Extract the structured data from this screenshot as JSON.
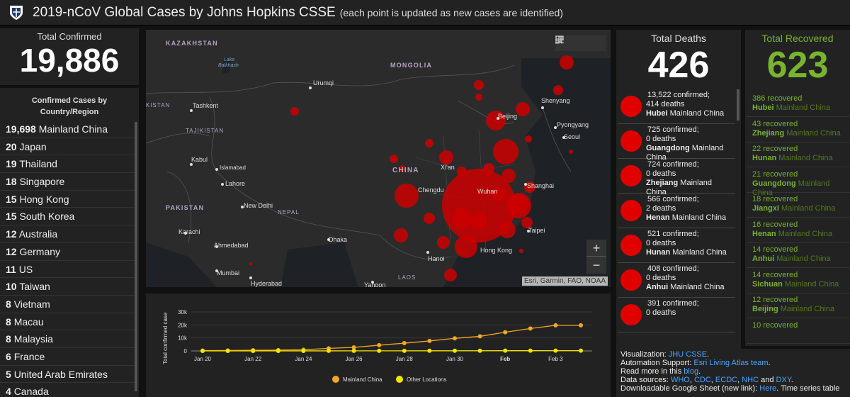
{
  "header": {
    "title": "2019-nCoV Global Cases by Johns Hopkins CSSE",
    "subtitle": "(each point is updated as new cases are identified)"
  },
  "total_confirmed": {
    "label": "Total Confirmed",
    "value": "19,886"
  },
  "country_list": {
    "heading_line1": "Confirmed Cases by",
    "heading_line2": "Country/Region",
    "items": [
      {
        "count": "19,698",
        "name": "Mainland China"
      },
      {
        "count": "20",
        "name": "Japan"
      },
      {
        "count": "19",
        "name": "Thailand"
      },
      {
        "count": "18",
        "name": "Singapore"
      },
      {
        "count": "15",
        "name": "Hong Kong"
      },
      {
        "count": "15",
        "name": "South Korea"
      },
      {
        "count": "12",
        "name": "Australia"
      },
      {
        "count": "12",
        "name": "Germany"
      },
      {
        "count": "11",
        "name": "US"
      },
      {
        "count": "10",
        "name": "Taiwan"
      },
      {
        "count": "8",
        "name": "Vietnam"
      },
      {
        "count": "8",
        "name": "Macau"
      },
      {
        "count": "8",
        "name": "Malaysia"
      },
      {
        "count": "6",
        "name": "France"
      },
      {
        "count": "5",
        "name": "United Arab Emirates"
      },
      {
        "count": "4",
        "name": "Canada"
      }
    ]
  },
  "map": {
    "labels": {
      "kazakhstan": "KAZAKHSTAN",
      "mongolia": "MONGOLIA",
      "china": "CHINA",
      "pakistan": "PAKISTAN",
      "nepal": "NEPAL",
      "laos": "LAOS",
      "tajikistan": "TAJIKISTAN",
      "kistan": "KISTAN",
      "lake": "Lake",
      "balkhash": "Balkhash",
      "urumqi": "Urumqi",
      "tashkent": "Tashkent",
      "kabul": "Kabul",
      "islamabad": "Islamabad",
      "lahore": "Lahore",
      "new_delhi": "New Delhi",
      "karachi": "Karachi",
      "ahmedabad": "Ahmedabad",
      "mumbai": "Mumbai",
      "hyderabad": "Hyderabad",
      "dhaka": "Dhaka",
      "chengdu": "Chengdu",
      "xian": "Xi'an",
      "wuhan": "Wuhan",
      "beijing": "Beijing",
      "shenyang": "Shenyang",
      "pyongyang": "Pyongyang",
      "seoul": "Seoul",
      "shanghai": "Shanghai",
      "taipei": "Taipei",
      "hong_kong": "Hong Kong",
      "hanoi": "Hanoi",
      "yangon": "Yangon"
    },
    "zoom_in": "+",
    "zoom_out": "−",
    "attribution": "Esri, Garmin, FAO, NOAA",
    "bookmark_icon": "bookmark-icon",
    "list_icon": "list-icon",
    "qr_icon": "qr-icon"
  },
  "chart_data": {
    "type": "line",
    "ylabel": "Total confirmed case",
    "ylim": [
      0,
      30000
    ],
    "yticks": [
      "0",
      "10k",
      "20k",
      "30k"
    ],
    "xtick_labels": [
      "Jan 20",
      "Jan 22",
      "Jan 24",
      "Jan 26",
      "Jan 28",
      "Jan 30",
      "Feb",
      "Feb 3"
    ],
    "x": [
      "Jan 20",
      "Jan 21",
      "Jan 22",
      "Jan 23",
      "Jan 24",
      "Jan 25",
      "Jan 26",
      "Jan 27",
      "Jan 28",
      "Jan 29",
      "Jan 30",
      "Jan 31",
      "Feb 1",
      "Feb 2",
      "Feb 3",
      "Feb 4"
    ],
    "series": [
      {
        "name": "Mainland China",
        "color": "#f5a623",
        "values": [
          278,
          326,
          547,
          639,
          916,
          1979,
          2737,
          4409,
          5970,
          7678,
          9658,
          11221,
          14375,
          17238,
          19698,
          19698
        ]
      },
      {
        "name": "Other Locations",
        "color": "#f5e400",
        "values": [
          4,
          6,
          8,
          14,
          25,
          40,
          57,
          64,
          87,
          105,
          118,
          153,
          173,
          183,
          188,
          188
        ]
      }
    ]
  },
  "total_deaths": {
    "label": "Total Deaths",
    "value": "426",
    "items": [
      {
        "confirmed": "13,522 confirmed;",
        "deaths": "414 deaths",
        "region": "Hubei",
        "country": "Mainland China"
      },
      {
        "confirmed": "725 confirmed;",
        "deaths": "0 deaths",
        "region": "Guangdong",
        "country": "Mainland China"
      },
      {
        "confirmed": "724 confirmed;",
        "deaths": "0 deaths",
        "region": "Zhejiang",
        "country": "Mainland China"
      },
      {
        "confirmed": "566 confirmed;",
        "deaths": "2 deaths",
        "region": "Henan",
        "country": "Mainland China"
      },
      {
        "confirmed": "521 confirmed;",
        "deaths": "0 deaths",
        "region": "Hunan",
        "country": "Mainland China"
      },
      {
        "confirmed": "408 confirmed;",
        "deaths": "0 deaths",
        "region": "Anhui",
        "country": "Mainland China"
      },
      {
        "confirmed": "391 confirmed;",
        "deaths": "0 deaths",
        "region": "",
        "country": ""
      }
    ]
  },
  "total_recovered": {
    "label": "Total Recovered",
    "value": "623",
    "items": [
      {
        "count": "386 recovered",
        "region": "Hubei",
        "country": "Mainland China"
      },
      {
        "count": "43 recovered",
        "region": "Zhejiang",
        "country": "Mainland China"
      },
      {
        "count": "22 recovered",
        "region": "Hunan",
        "country": "Mainland China"
      },
      {
        "count": "21 recovered",
        "region": "Guangdong",
        "country": "Mainland China"
      },
      {
        "count": "18 recovered",
        "region": "Jiangxi",
        "country": "Mainland China"
      },
      {
        "count": "16 recovered",
        "region": "Henan",
        "country": "Mainland China"
      },
      {
        "count": "14 recovered",
        "region": "Anhui",
        "country": "Mainland China"
      },
      {
        "count": "14 recovered",
        "region": "Sichuan",
        "country": "Mainland China"
      },
      {
        "count": "12 recovered",
        "region": "Beijing",
        "country": "Mainland China"
      },
      {
        "count": "10 recovered",
        "region": "",
        "country": ""
      }
    ]
  },
  "info": {
    "viz_label": "Visualization:",
    "viz_link": "JHU CSSE",
    "support_label": "Automation Support:",
    "support_link": "Esri Living Atlas team",
    "read_more": "Read more in this",
    "blog_link": "blog",
    "sources_label": "Data sources:",
    "src_who": "WHO",
    "src_cdc": "CDC",
    "src_ecdc": "ECDC",
    "src_nhc": "NHC",
    "and_text": "and",
    "src_dxy": "DXY",
    "download_label": "Downloadable Google Sheet (new link):",
    "here_link": "Here",
    "timeseries_text": "Time series table"
  }
}
